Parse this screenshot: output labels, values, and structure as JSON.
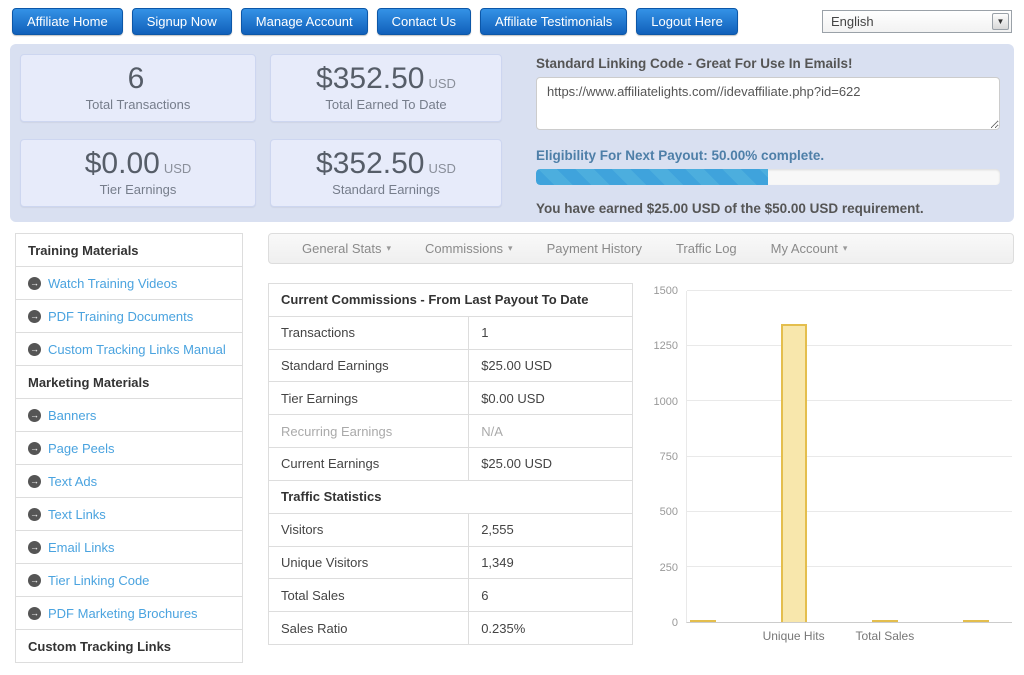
{
  "nav": {
    "buttons": [
      "Affiliate Home",
      "Signup Now",
      "Manage Account",
      "Contact Us",
      "Affiliate Testimonials",
      "Logout Here"
    ],
    "language": "English"
  },
  "summary": {
    "stats": [
      {
        "value": "6",
        "unit": "",
        "label": "Total Transactions"
      },
      {
        "value": "$352.50",
        "unit": "USD",
        "label": "Total Earned To Date"
      },
      {
        "value": "$0.00",
        "unit": "USD",
        "label": "Tier Earnings"
      },
      {
        "value": "$352.50",
        "unit": "USD",
        "label": "Standard Earnings"
      }
    ],
    "linking": {
      "title": "Standard Linking Code - Great For Use In Emails!",
      "code": "https://www.affiliatelights.com//idevaffiliate.php?id=622"
    },
    "payout": {
      "title": "Eligibility For Next Payout: 50.00% complete.",
      "percent": 50,
      "note": "You have earned $25.00 USD of the $50.00 USD requirement."
    }
  },
  "sidebar": {
    "items": [
      {
        "type": "header",
        "label": "Training Materials"
      },
      {
        "type": "link",
        "label": "Watch Training Videos"
      },
      {
        "type": "link",
        "label": "PDF Training Documents"
      },
      {
        "type": "link",
        "label": "Custom Tracking Links Manual"
      },
      {
        "type": "header",
        "label": "Marketing Materials"
      },
      {
        "type": "link",
        "label": "Banners"
      },
      {
        "type": "link",
        "label": "Page Peels"
      },
      {
        "type": "link",
        "label": "Text Ads"
      },
      {
        "type": "link",
        "label": "Text Links"
      },
      {
        "type": "link",
        "label": "Email Links"
      },
      {
        "type": "link",
        "label": "Tier Linking Code"
      },
      {
        "type": "link",
        "label": "PDF Marketing Brochures"
      },
      {
        "type": "header",
        "label": "Custom Tracking Links"
      }
    ]
  },
  "tabs": [
    {
      "label": "General Stats",
      "dropdown": true
    },
    {
      "label": "Commissions",
      "dropdown": true
    },
    {
      "label": "Payment History",
      "dropdown": false
    },
    {
      "label": "Traffic Log",
      "dropdown": false
    },
    {
      "label": "My Account",
      "dropdown": true
    }
  ],
  "stats_table": {
    "rows": [
      {
        "type": "section",
        "label": "Current Commissions - From Last Payout To Date"
      },
      {
        "type": "data",
        "label": "Transactions",
        "value": "1"
      },
      {
        "type": "data",
        "label": "Standard Earnings",
        "value": "$25.00 USD"
      },
      {
        "type": "data",
        "label": "Tier Earnings",
        "value": "$0.00 USD"
      },
      {
        "type": "data",
        "label": "Recurring Earnings",
        "value": "N/A",
        "muted": true
      },
      {
        "type": "data",
        "label": "Current Earnings",
        "value": "$25.00 USD"
      },
      {
        "type": "section",
        "label": "Traffic Statistics"
      },
      {
        "type": "data",
        "label": "Visitors",
        "value": "2,555"
      },
      {
        "type": "data",
        "label": "Unique Visitors",
        "value": "1,349"
      },
      {
        "type": "data",
        "label": "Total Sales",
        "value": "6"
      },
      {
        "type": "data",
        "label": "Sales Ratio",
        "value": "0.235%"
      }
    ]
  },
  "chart_data": {
    "type": "bar",
    "title": "",
    "xlabel": "",
    "ylabel": "",
    "categories": [
      "",
      "Unique Hits",
      "Total Sales",
      ""
    ],
    "values": [
      5,
      1349,
      6,
      4
    ],
    "ylim": [
      0,
      1500
    ],
    "yticks": [
      0,
      250,
      500,
      750,
      1000,
      1250,
      1500
    ],
    "grid": true,
    "legend": "none",
    "bar_fill": "#f8e7ac",
    "bar_border": "#e4be4d"
  },
  "colors": {
    "button_blue": "#1f6fd0",
    "panel_background": "#d9e0f1",
    "stat_box_background": "#e7ebfa",
    "link_blue": "#4aa3df",
    "payout_title_blue": "#4e7fa8",
    "progress_blue": "#3fa3dc",
    "bar_fill": "#f8e7ac",
    "bar_border": "#e4be4d"
  }
}
